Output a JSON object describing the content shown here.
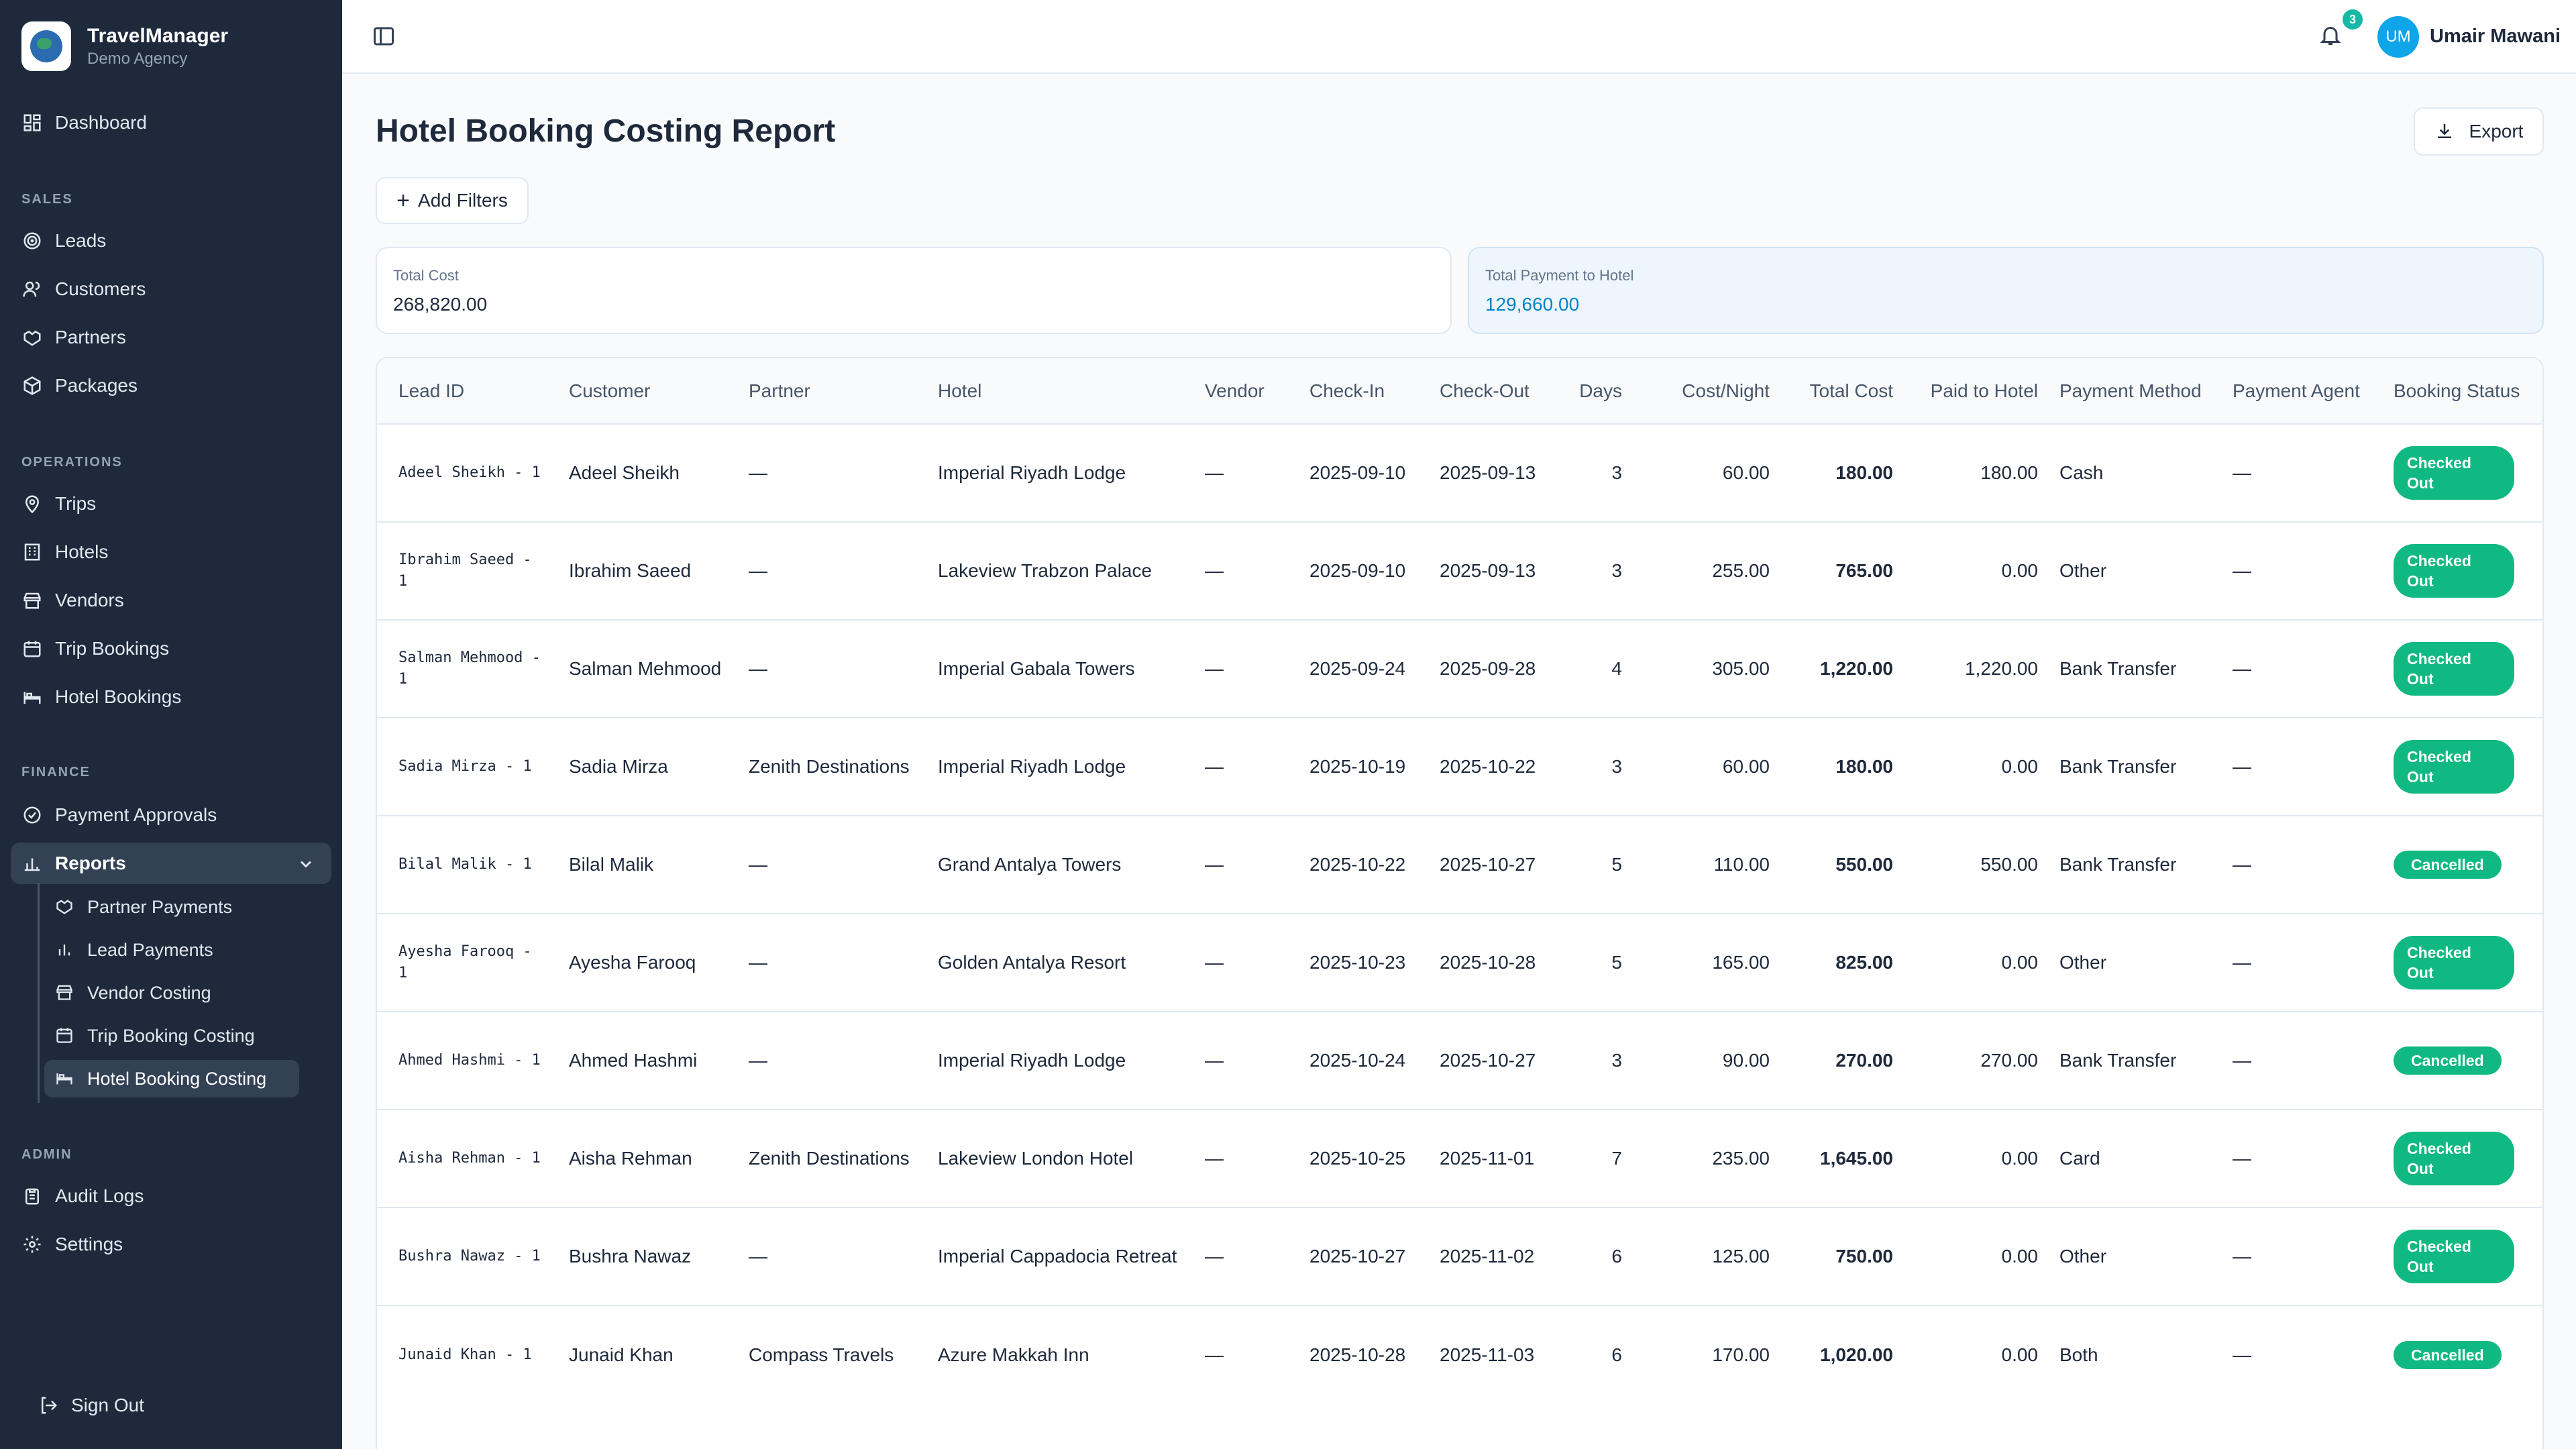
{
  "app": {
    "name": "TravelManager",
    "agency": "Demo Agency"
  },
  "sidebar": {
    "dashboard": "Dashboard",
    "sections": {
      "sales": "SALES",
      "operations": "OPERATIONS",
      "finance": "FINANCE",
      "admin": "ADMIN"
    },
    "sales_items": [
      "Leads",
      "Customers",
      "Partners",
      "Packages"
    ],
    "operations_items": [
      "Trips",
      "Hotels",
      "Vendors",
      "Trip Bookings",
      "Hotel Bookings"
    ],
    "finance_items": [
      "Payment Approvals",
      "Reports"
    ],
    "reports_sub": [
      "Partner Payments",
      "Lead Payments",
      "Vendor Costing",
      "Trip Booking Costing",
      "Hotel Booking Costing"
    ],
    "admin_items": [
      "Audit Logs",
      "Settings"
    ],
    "sign_out": "Sign Out"
  },
  "topbar": {
    "notification_count": "3",
    "user_initials": "UM",
    "user_name": "Umair Mawani"
  },
  "page": {
    "title": "Hotel Booking Costing Report",
    "export_label": "Export",
    "add_filters_label": "Add Filters"
  },
  "summary": {
    "total_cost_label": "Total Cost",
    "total_cost_value": "268,820.00",
    "total_payment_label": "Total Payment to Hotel",
    "total_payment_value": "129,660.00"
  },
  "table": {
    "headers": [
      "Lead ID",
      "Customer",
      "Partner",
      "Hotel",
      "Vendor",
      "Check-In",
      "Check-Out",
      "Days",
      "Cost/Night",
      "Total Cost",
      "Paid to Hotel",
      "Payment Method",
      "Payment Agent",
      "Booking Status"
    ],
    "rows": [
      {
        "lead": "Adeel Sheikh - 1",
        "customer": "Adeel Sheikh",
        "partner": "—",
        "hotel": "Imperial Riyadh Lodge",
        "vendor": "—",
        "checkin": "2025-09-10",
        "checkout": "2025-09-13",
        "days": "3",
        "cost_night": "60.00",
        "total": "180.00",
        "paid": "180.00",
        "method": "Cash",
        "agent": "—",
        "status": "Checked Out"
      },
      {
        "lead": "Ibrahim Saeed - 1",
        "customer": "Ibrahim Saeed",
        "partner": "—",
        "hotel": "Lakeview Trabzon Palace",
        "vendor": "—",
        "checkin": "2025-09-10",
        "checkout": "2025-09-13",
        "days": "3",
        "cost_night": "255.00",
        "total": "765.00",
        "paid": "0.00",
        "method": "Other",
        "agent": "—",
        "status": "Checked Out"
      },
      {
        "lead": "Salman Mehmood - 1",
        "customer": "Salman Mehmood",
        "partner": "—",
        "hotel": "Imperial Gabala Towers",
        "vendor": "—",
        "checkin": "2025-09-24",
        "checkout": "2025-09-28",
        "days": "4",
        "cost_night": "305.00",
        "total": "1,220.00",
        "paid": "1,220.00",
        "method": "Bank Transfer",
        "agent": "—",
        "status": "Checked Out"
      },
      {
        "lead": "Sadia Mirza - 1",
        "customer": "Sadia Mirza",
        "partner": "Zenith Destinations",
        "hotel": "Imperial Riyadh Lodge",
        "vendor": "—",
        "checkin": "2025-10-19",
        "checkout": "2025-10-22",
        "days": "3",
        "cost_night": "60.00",
        "total": "180.00",
        "paid": "0.00",
        "method": "Bank Transfer",
        "agent": "—",
        "status": "Checked Out"
      },
      {
        "lead": "Bilal Malik - 1",
        "customer": "Bilal Malik",
        "partner": "—",
        "hotel": "Grand Antalya Towers",
        "vendor": "—",
        "checkin": "2025-10-22",
        "checkout": "2025-10-27",
        "days": "5",
        "cost_night": "110.00",
        "total": "550.00",
        "paid": "550.00",
        "method": "Bank Transfer",
        "agent": "—",
        "status": "Cancelled"
      },
      {
        "lead": "Ayesha Farooq - 1",
        "customer": "Ayesha Farooq",
        "partner": "—",
        "hotel": "Golden Antalya Resort",
        "vendor": "—",
        "checkin": "2025-10-23",
        "checkout": "2025-10-28",
        "days": "5",
        "cost_night": "165.00",
        "total": "825.00",
        "paid": "0.00",
        "method": "Other",
        "agent": "—",
        "status": "Checked Out"
      },
      {
        "lead": "Ahmed Hashmi - 1",
        "customer": "Ahmed Hashmi",
        "partner": "—",
        "hotel": "Imperial Riyadh Lodge",
        "vendor": "—",
        "checkin": "2025-10-24",
        "checkout": "2025-10-27",
        "days": "3",
        "cost_night": "90.00",
        "total": "270.00",
        "paid": "270.00",
        "method": "Bank Transfer",
        "agent": "—",
        "status": "Cancelled"
      },
      {
        "lead": "Aisha Rehman - 1",
        "customer": "Aisha Rehman",
        "partner": "Zenith Destinations",
        "hotel": "Lakeview London Hotel",
        "vendor": "—",
        "checkin": "2025-10-25",
        "checkout": "2025-11-01",
        "days": "7",
        "cost_night": "235.00",
        "total": "1,645.00",
        "paid": "0.00",
        "method": "Card",
        "agent": "—",
        "status": "Checked Out"
      },
      {
        "lead": "Bushra Nawaz - 1",
        "customer": "Bushra Nawaz",
        "partner": "—",
        "hotel": "Imperial Cappadocia Retreat",
        "vendor": "—",
        "checkin": "2025-10-27",
        "checkout": "2025-11-02",
        "days": "6",
        "cost_night": "125.00",
        "total": "750.00",
        "paid": "0.00",
        "method": "Other",
        "agent": "—",
        "status": "Checked Out"
      },
      {
        "lead": "Junaid Khan - 1",
        "customer": "Junaid Khan",
        "partner": "Compass Travels",
        "hotel": "Azure Makkah Inn",
        "vendor": "—",
        "checkin": "2025-10-28",
        "checkout": "2025-11-03",
        "days": "6",
        "cost_night": "170.00",
        "total": "1,020.00",
        "paid": "0.00",
        "method": "Both",
        "agent": "—",
        "status": "Cancelled"
      }
    ]
  },
  "colors": {
    "sidebar_bg": "#1e293b",
    "accent": "#0284c7",
    "status_green": "#10b981"
  }
}
